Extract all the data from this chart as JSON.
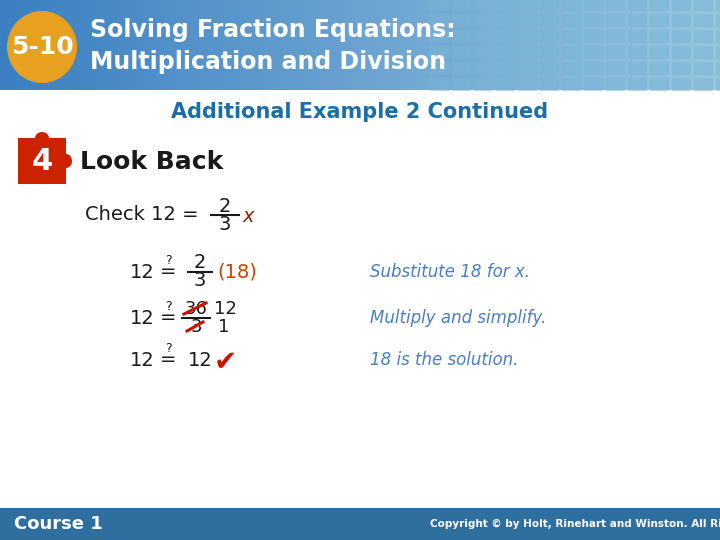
{
  "title_line1": "Solving Fraction Equations:",
  "title_line2": "Multiplication and Division",
  "badge_number": "5-10",
  "subtitle": "Additional Example 2 Continued",
  "step_number": "4",
  "step_label": "Look Back",
  "bg_color": "#f0f4f8",
  "header_bg_left": "#3a7fc1",
  "header_bg_right": "#8ab8d8",
  "header_text_color": "#ffffff",
  "badge_bg": "#e8a020",
  "subtitle_color": "#1a6fa8",
  "body_text_color": "#1a1a1a",
  "italic_color": "#4a7fbf",
  "red_color": "#cc1100",
  "footer_bg": "#2e6fa0",
  "footer_text": "Course 1",
  "footer_text_color": "#ffffff",
  "copyright": "Copyright © by Holt, Rinehart and Winston. All Rights Reserved.",
  "grid_color": "#5a9fd4",
  "subtitle_bg": "#ffffff"
}
